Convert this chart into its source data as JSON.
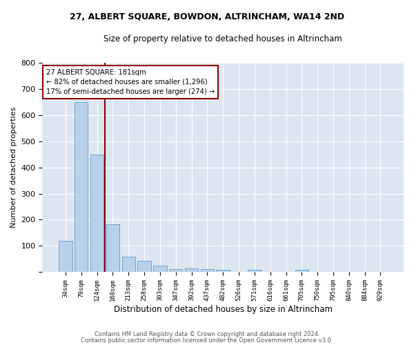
{
  "title": "27, ALBERT SQUARE, BOWDON, ALTRINCHAM, WA14 2ND",
  "subtitle": "Size of property relative to detached houses in Altrincham",
  "xlabel": "Distribution of detached houses by size in Altrincham",
  "ylabel": "Number of detached properties",
  "bar_color": "#b8d0ea",
  "bar_edge_color": "#6699cc",
  "background_color": "#dde6f0",
  "grid_color": "#ffffff",
  "categories": [
    "34sqm",
    "79sqm",
    "124sqm",
    "168sqm",
    "213sqm",
    "258sqm",
    "303sqm",
    "347sqm",
    "392sqm",
    "437sqm",
    "482sqm",
    "526sqm",
    "571sqm",
    "616sqm",
    "661sqm",
    "705sqm",
    "750sqm",
    "795sqm",
    "840sqm",
    "884sqm",
    "929sqm"
  ],
  "values": [
    120,
    650,
    450,
    183,
    60,
    43,
    24,
    12,
    14,
    11,
    10,
    0,
    8,
    0,
    0,
    9,
    0,
    0,
    0,
    0,
    0
  ],
  "annotation_line1": "27 ALBERT SQUARE: 181sqm",
  "annotation_line2": "← 82% of detached houses are smaller (1,296)",
  "annotation_line3": "17% of semi-detached houses are larger (274) →",
  "vline_x_index": 2.48,
  "ylim": [
    0,
    800
  ],
  "yticks": [
    0,
    100,
    200,
    300,
    400,
    500,
    600,
    700,
    800
  ],
  "footer_line1": "Contains HM Land Registry data © Crown copyright and database right 2024.",
  "footer_line2": "Contains public sector information licensed under the Open Government Licence v3.0."
}
